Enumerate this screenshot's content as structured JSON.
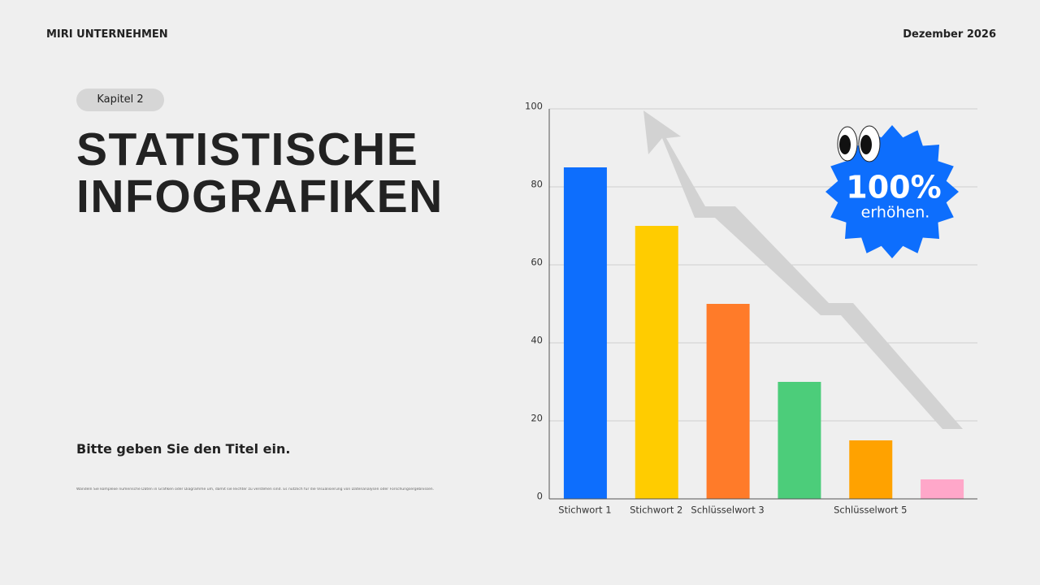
{
  "header": {
    "company": "MIRI UNTERNEHMEN",
    "date": "Dezember 2026"
  },
  "chapter": "Kapitel 2",
  "title": "STATISTISCHE INFOGRAFIKEN",
  "subtitle": "Bitte geben Sie den Titel ein.",
  "description": "Wandeln Sie komplexe numerische Daten in Grafiken oder Diagramme um, damit sie leichter zu verstehen sind. Es nützlich für die Visualisierung von Datenanalysen oder Forschungsergebnissen.",
  "badge": {
    "value": "100%",
    "label": "erhöhen."
  },
  "chart_data": {
    "type": "bar",
    "categories": [
      "Stichwort 1",
      "Stichwort 2",
      "Schlüsselwort 3",
      null,
      "Schlüsselwort 5",
      null
    ],
    "values": [
      85,
      70,
      50,
      30,
      15,
      5
    ],
    "colors": [
      "#0d6efd",
      "#ffcc00",
      "#ff7b29",
      "#4ccd7a",
      "#ffa200",
      "#ffa7c9"
    ],
    "ylim": [
      0,
      100
    ],
    "yticks": [
      0,
      20,
      40,
      60,
      80,
      100
    ],
    "grid": true
  }
}
